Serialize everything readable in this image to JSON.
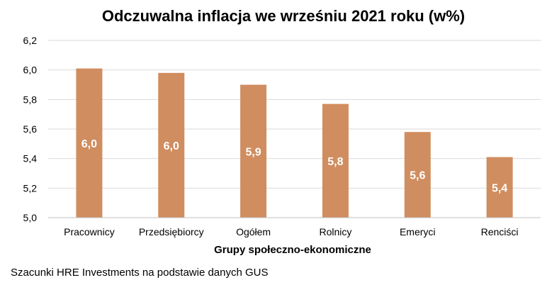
{
  "chart_data": {
    "type": "bar",
    "title": "Odczuwalna inflacja we wrześniu 2021 roku (w%)",
    "xlabel": "Grupy społeczno-ekonomiczne",
    "ylabel": "",
    "categories": [
      "Pracownicy",
      "Przedsiębiorcy",
      "Ogółem",
      "Rolnicy",
      "Emeryci",
      "Renciści"
    ],
    "values": [
      6.01,
      5.98,
      5.9,
      5.77,
      5.58,
      5.41
    ],
    "data_labels": [
      "6,0",
      "6,0",
      "5,9",
      "5,8",
      "5,6",
      "5,4"
    ],
    "ylim": [
      5.0,
      6.2
    ],
    "yticks": [
      5.0,
      5.2,
      5.4,
      5.6,
      5.8,
      6.0,
      6.2
    ],
    "ytick_labels": [
      "5,0",
      "5,2",
      "5,4",
      "5,6",
      "5,8",
      "6,0",
      "6,2"
    ],
    "grid": true,
    "legend": "none",
    "colors": {
      "bar": "#d08d5f",
      "grid": "#d9d9d9",
      "axis": "#bfbfbf"
    }
  },
  "footnote": "Szacunki HRE Investments na podstawie danych GUS"
}
